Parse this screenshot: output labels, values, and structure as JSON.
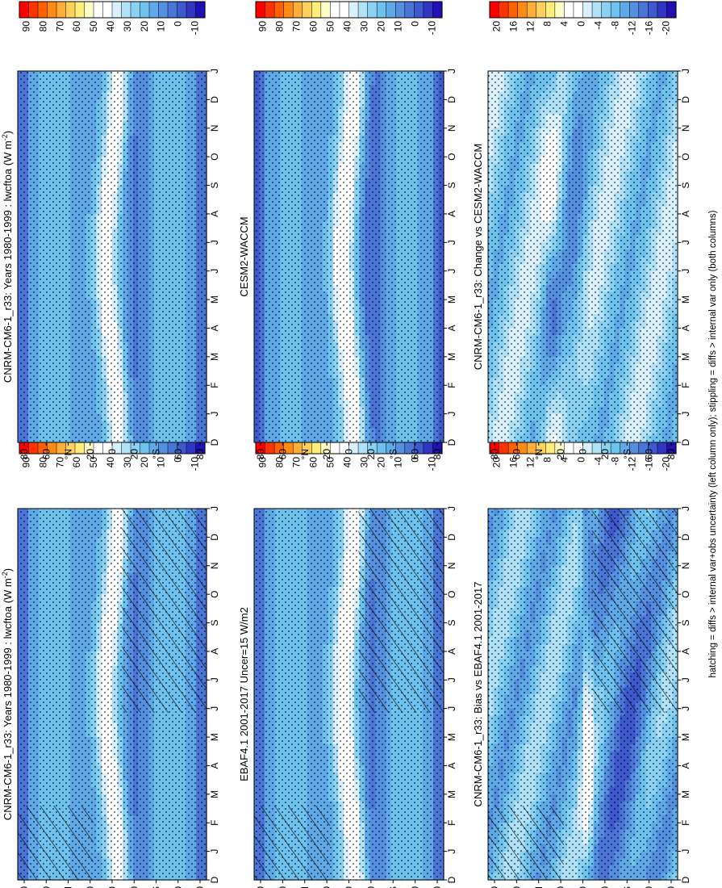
{
  "footer": "hatching = diffs > internal var+obs uncertainty (left column only); stippling = diffs > internal var only (both columns)",
  "colors": {
    "scale_main": [
      "#ff0000",
      "#ff3300",
      "#ff6000",
      "#ff8b14",
      "#ffae38",
      "#ffd05c",
      "#ffee7a",
      "#fffdc6",
      "#ffffff",
      "#ffffff",
      "#d9f1fd",
      "#b2e2f8",
      "#8bd2f2",
      "#6ec2ee",
      "#5fa9e8",
      "#5590e0",
      "#4a75d7",
      "#3e58cd",
      "#3036c2",
      "#2110b5"
    ],
    "scale_diff": [
      "#ff0000",
      "#ff3300",
      "#ff6000",
      "#ff8b14",
      "#ffae38",
      "#ffd05c",
      "#ffee7a",
      "#fffdc6",
      "#ffffff",
      "#ffffff",
      "#d9f1fd",
      "#b2e2f8",
      "#8bd2f2",
      "#6ec2ee",
      "#5fa9e8",
      "#5590e0",
      "#4a75d7",
      "#3e58cd",
      "#3036c2",
      "#2110b5"
    ]
  },
  "chart_data": [
    {
      "type": "heatmap",
      "title": "CNRM-CM6-1_r33: Years 1980-1999 : lwcftoa (W m",
      "title_sup": "-2",
      "title_close": ")",
      "months": [
        "D",
        "J",
        "F",
        "M",
        "A",
        "M",
        "J",
        "J",
        "A",
        "S",
        "O",
        "N",
        "D",
        "J"
      ],
      "lat_labels": [
        "80",
        "60",
        "°N",
        "20",
        "0",
        "20",
        "°S",
        "60",
        "80"
      ],
      "colorbar_labels": [
        "90",
        "80",
        "70",
        "60",
        "50",
        "40",
        "30",
        "20",
        "10",
        "0",
        "-10"
      ],
      "hatching": true,
      "stippling": true,
      "field": "clim"
    },
    {
      "type": "heatmap",
      "title": "CNRM-CM6-1_r33: Years 1980-1999 : lwcftoa (W m",
      "title_sup": "-2",
      "title_close": ")",
      "months": [
        "D",
        "J",
        "F",
        "M",
        "A",
        "M",
        "J",
        "J",
        "A",
        "S",
        "O",
        "N",
        "D",
        "J"
      ],
      "lat_labels": [
        "80",
        "60",
        "°N",
        "20",
        "0",
        "20",
        "°S",
        "60",
        "80"
      ],
      "colorbar_labels": [
        "90",
        "80",
        "70",
        "60",
        "50",
        "40",
        "30",
        "20",
        "10",
        "0",
        "-10"
      ],
      "hatching": false,
      "stippling": true,
      "field": "clim"
    },
    {
      "type": "heatmap",
      "title": "EBAF4.1 2001-2017 Uncer=15 W/m2",
      "months": [
        "D",
        "J",
        "F",
        "M",
        "A",
        "M",
        "J",
        "J",
        "A",
        "S",
        "O",
        "N",
        "D",
        "J"
      ],
      "lat_labels": [
        "80",
        "60",
        "°N",
        "20",
        "0",
        "20",
        "°S",
        "60",
        "80"
      ],
      "colorbar_labels": [
        "90",
        "80",
        "70",
        "60",
        "50",
        "40",
        "30",
        "20",
        "10",
        "0",
        "-10"
      ],
      "hatching": true,
      "stippling": true,
      "field": "obs"
    },
    {
      "type": "heatmap",
      "title": "CESM2-WACCM",
      "months": [
        "D",
        "J",
        "F",
        "M",
        "A",
        "M",
        "J",
        "J",
        "A",
        "S",
        "O",
        "N",
        "D",
        "J"
      ],
      "lat_labels": [
        "80",
        "60",
        "°N",
        "20",
        "0",
        "20",
        "°S",
        "60",
        "80"
      ],
      "colorbar_labels": [
        "90",
        "80",
        "70",
        "60",
        "50",
        "40",
        "30",
        "20",
        "10",
        "0",
        "-10"
      ],
      "hatching": false,
      "stippling": true,
      "field": "ref"
    },
    {
      "type": "heatmap",
      "title": "CNRM-CM6-1_r33: Bias vs EBAF4.1 2001-2017",
      "months": [
        "D",
        "J",
        "F",
        "M",
        "A",
        "M",
        "J",
        "J",
        "A",
        "S",
        "O",
        "N",
        "D",
        "J"
      ],
      "lat_labels": [
        "80",
        "60",
        "°N",
        "20",
        "0",
        "20",
        "°S",
        "60",
        "80"
      ],
      "colorbar_labels": [
        "20",
        "16",
        "12",
        "8",
        "4",
        "0",
        "-4",
        "-8",
        "-12",
        "-16",
        "-20"
      ],
      "hatching": true,
      "stippling": true,
      "field": "bias"
    },
    {
      "type": "heatmap",
      "title": "CNRM-CM6-1_r33: Change vs CESM2-WACCM",
      "months": [
        "D",
        "J",
        "F",
        "M",
        "A",
        "M",
        "J",
        "J",
        "A",
        "S",
        "O",
        "N",
        "D",
        "J"
      ],
      "lat_labels": [
        "80",
        "60",
        "°N",
        "20",
        "0",
        "20",
        "°S",
        "60",
        "80"
      ],
      "colorbar_labels": [
        "20",
        "16",
        "12",
        "8",
        "4",
        "0",
        "-4",
        "-8",
        "-12",
        "-16",
        "-20"
      ],
      "hatching": false,
      "stippling": true,
      "field": "change"
    }
  ]
}
